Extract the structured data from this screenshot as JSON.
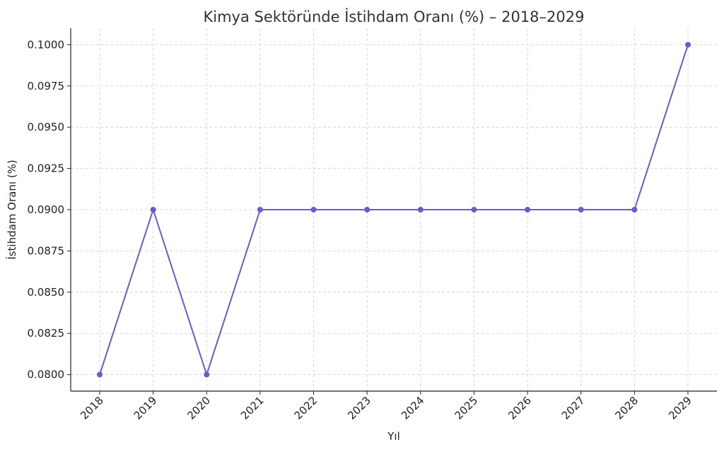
{
  "chart_data": {
    "type": "line",
    "title": "Kimya Sektöründe İstihdam Oranı (%) – 2018–2029",
    "xlabel": "Yıl",
    "ylabel": "İstihdam Oranı (%)",
    "x": [
      "2018",
      "2019",
      "2020",
      "2021",
      "2022",
      "2023",
      "2024",
      "2025",
      "2026",
      "2027",
      "2028",
      "2029"
    ],
    "series": [
      {
        "values": [
          0.08,
          0.09,
          0.08,
          0.09,
          0.09,
          0.09,
          0.09,
          0.09,
          0.09,
          0.09,
          0.09,
          0.1
        ],
        "color": "#6a5acd"
      }
    ],
    "yticks": [
      "0.0800",
      "0.0825",
      "0.0850",
      "0.0875",
      "0.0900",
      "0.0925",
      "0.0950",
      "0.0975",
      "0.1000"
    ],
    "ylim": [
      0.079,
      0.101
    ],
    "grid": true,
    "legend": "none"
  }
}
